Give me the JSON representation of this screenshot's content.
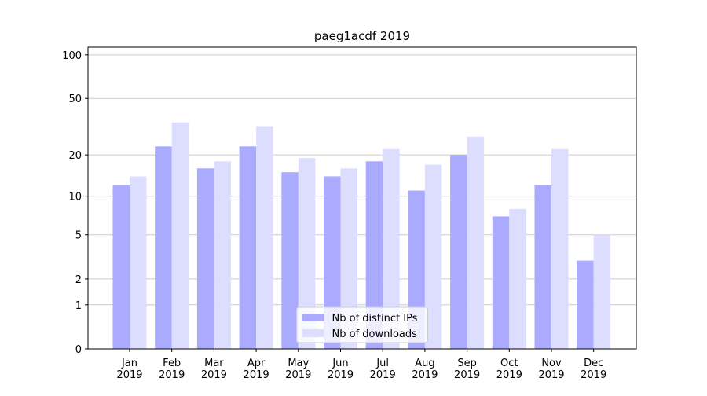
{
  "chart_data": {
    "type": "bar",
    "title": "paeg1acdf 2019",
    "categories": [
      "Jan\n2019",
      "Feb\n2019",
      "Mar\n2019",
      "Apr\n2019",
      "May\n2019",
      "Jun\n2019",
      "Jul\n2019",
      "Aug\n2019",
      "Sep\n2019",
      "Oct\n2019",
      "Nov\n2019",
      "Dec\n2019"
    ],
    "series": [
      {
        "name": "Nb of distinct IPs",
        "color": "#aaaaff",
        "values": [
          12,
          23,
          16,
          23,
          15,
          14,
          18,
          11,
          20,
          7,
          12,
          3
        ]
      },
      {
        "name": "Nb of downloads",
        "color": "#ddddff",
        "values": [
          14,
          34,
          18,
          32,
          19,
          16,
          22,
          17,
          27,
          8,
          22,
          5
        ]
      }
    ],
    "yscale": "log1p",
    "ylim": [
      0,
      113
    ],
    "yticks": [
      0,
      1,
      2,
      5,
      10,
      20,
      50,
      100
    ],
    "grid": true,
    "legend": "lower center"
  }
}
